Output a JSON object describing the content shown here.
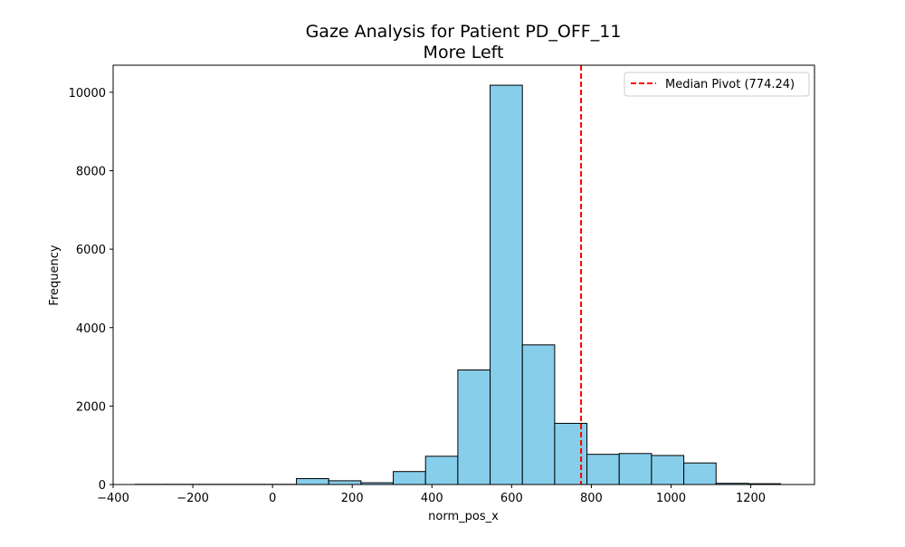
{
  "chart_data": {
    "type": "bar",
    "title": "Gaze Analysis for Patient PD_OFF_11",
    "subtitle": "More Left",
    "xlabel": "norm_pos_x",
    "ylabel": "Frequency",
    "xlim": [
      -400,
      1360
    ],
    "ylim": [
      0,
      10690
    ],
    "x_ticks": [
      -400,
      -200,
      0,
      200,
      400,
      600,
      800,
      1000,
      1200
    ],
    "y_ticks": [
      0,
      2000,
      4000,
      6000,
      8000,
      10000
    ],
    "bin_edges": [
      -345,
      -264,
      -183,
      -102,
      -21,
      60,
      141,
      222,
      303,
      384,
      465,
      546,
      627,
      708,
      789,
      870,
      951,
      1032,
      1113,
      1194,
      1275
    ],
    "values": [
      5,
      5,
      5,
      5,
      5,
      150,
      95,
      45,
      330,
      720,
      2920,
      10180,
      3560,
      1560,
      770,
      790,
      740,
      550,
      30,
      20
    ],
    "bar_color": "#87ceeb",
    "bar_edge_color": "#000000",
    "grid": false,
    "reference_line": {
      "x": 774.24,
      "color": "#ff0000",
      "style": "dashed",
      "label": "Median Pivot (774.24)"
    },
    "legend": {
      "position": "top-right",
      "entries": [
        "Median Pivot (774.24)"
      ]
    }
  }
}
